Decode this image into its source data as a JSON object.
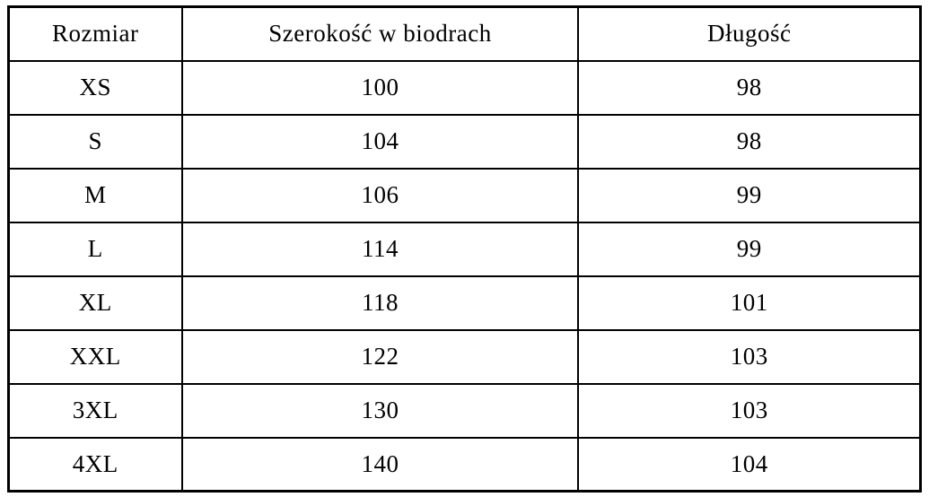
{
  "chart_data": {
    "type": "table",
    "columns": [
      "Rozmiar",
      "Szerokość w biodrach",
      "Długość"
    ],
    "rows": [
      [
        "XS",
        "100",
        "98"
      ],
      [
        "S",
        "104",
        "98"
      ],
      [
        "M",
        "106",
        "99"
      ],
      [
        "L",
        "114",
        "99"
      ],
      [
        "XL",
        "118",
        "101"
      ],
      [
        "XXL",
        "122",
        "103"
      ],
      [
        "3XL",
        "130",
        "103"
      ],
      [
        "4XL",
        "140",
        "104"
      ]
    ]
  },
  "colors": {
    "border": "#000000",
    "background": "#ffffff",
    "text": "#000000"
  }
}
